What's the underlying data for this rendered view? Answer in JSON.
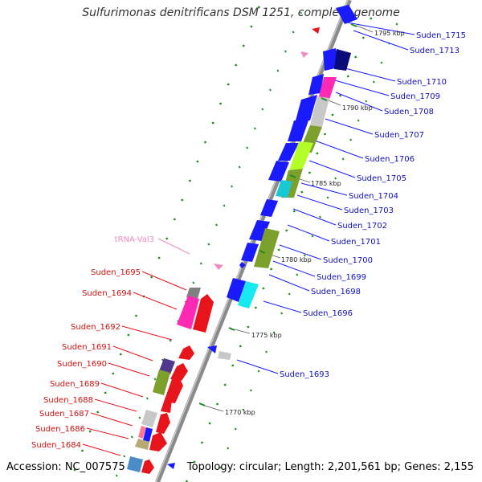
{
  "title": "Sulfurimonas denitrificans DSM 1251, complete genome",
  "accession": "Accession: NC_007575",
  "topology": "Topology: circular; Length: 2,201,561 bp; Genes: 2,155",
  "scale_labels": [
    "1795 kbp",
    "1790 kbp",
    "1785 kbp",
    "1780 kbp",
    "1775 kbp",
    "1770 kbp"
  ],
  "right_genes": [
    "Suden_1715",
    "Suden_1713",
    "Suden_1710",
    "Suden_1709",
    "Suden_1708",
    "Suden_1707",
    "Suden_1706",
    "Suden_1705",
    "Suden_1704",
    "Suden_1703",
    "Suden_1702",
    "Suden_1701",
    "Suden_1700",
    "Suden_1699",
    "Suden_1698",
    "Suden_1696",
    "Suden_1693"
  ],
  "left_genes": [
    "Suden_1695",
    "Suden_1694",
    "Suden_1692",
    "Suden_1691",
    "Suden_1690",
    "Suden_1689",
    "Suden_1688",
    "Suden_1687",
    "Suden_1686",
    "Suden_1684"
  ],
  "trna_label": "tRNA-Val3",
  "colors": {
    "forward_gene": "#e8141c",
    "reverse_gene": "#1a1aff",
    "right_label": "#1010c0",
    "left_label": "#d01010",
    "trna": "#f08cc0",
    "backbone": "#888888",
    "tick": "#1e8c1e"
  }
}
